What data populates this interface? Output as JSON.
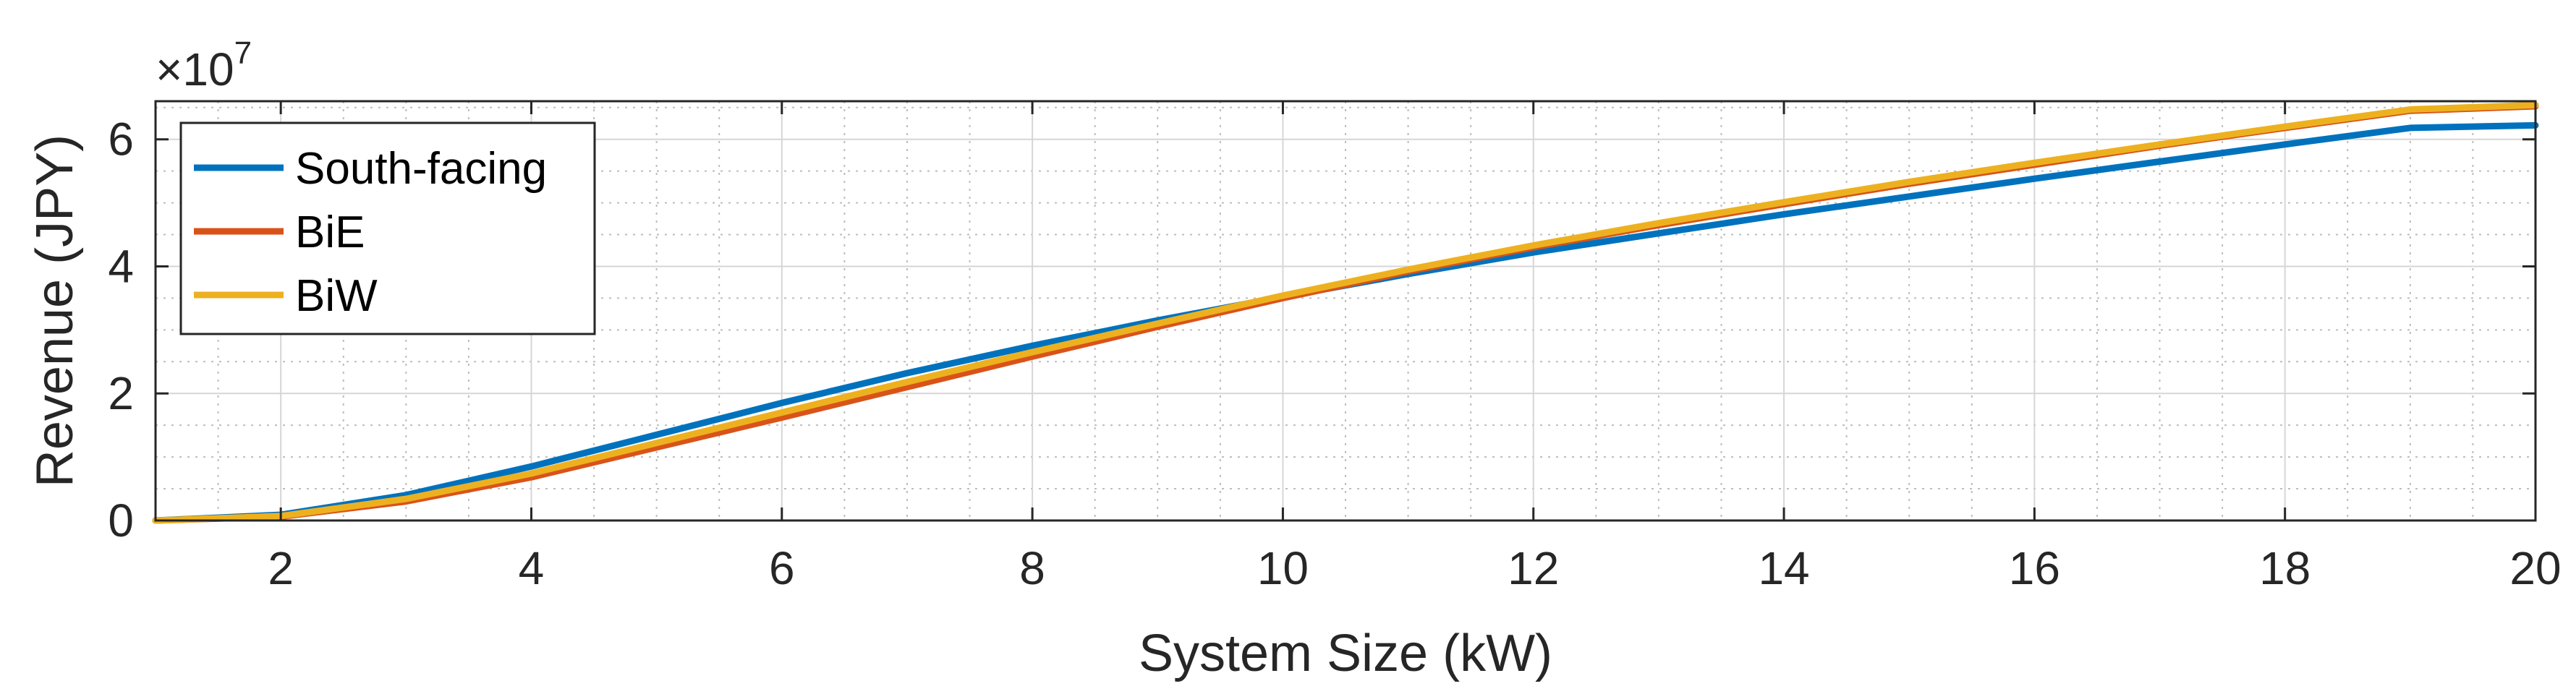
{
  "chart_data": {
    "type": "line",
    "xlabel": "System Size (kW)",
    "ylabel": "Revenue (JPY)",
    "y_multiplier": {
      "base": "×10",
      "exponent": "7"
    },
    "xlim": [
      1,
      20
    ],
    "ylim": [
      0,
      6.6
    ],
    "x_ticks": [
      2,
      4,
      6,
      8,
      10,
      12,
      14,
      16,
      18,
      20
    ],
    "y_ticks": [
      0,
      2,
      4,
      6
    ],
    "grid": true,
    "minor_grid": true,
    "legend_position": "top-left",
    "x": [
      1,
      2,
      3,
      4,
      5,
      6,
      7,
      8,
      9,
      10,
      11,
      12,
      13,
      14,
      15,
      16,
      17,
      18,
      19,
      20
    ],
    "series": [
      {
        "name": "South-facing",
        "color": "#0072BD",
        "values": [
          0.0,
          0.09,
          0.4,
          0.85,
          1.35,
          1.85,
          2.32,
          2.75,
          3.15,
          3.52,
          3.88,
          4.22,
          4.52,
          4.82,
          5.1,
          5.38,
          5.65,
          5.92,
          6.18,
          6.22
        ]
      },
      {
        "name": "BiE",
        "color": "#D95319",
        "values": [
          0.0,
          0.06,
          0.3,
          0.68,
          1.15,
          1.62,
          2.1,
          2.58,
          3.05,
          3.5,
          3.92,
          4.3,
          4.65,
          4.98,
          5.3,
          5.6,
          5.9,
          6.18,
          6.45,
          6.52
        ]
      },
      {
        "name": "BiW",
        "color": "#EDB120",
        "values": [
          0.0,
          0.07,
          0.34,
          0.74,
          1.22,
          1.7,
          2.18,
          2.65,
          3.1,
          3.54,
          3.95,
          4.33,
          4.68,
          5.01,
          5.33,
          5.63,
          5.92,
          6.2,
          6.47,
          6.54
        ]
      }
    ]
  }
}
